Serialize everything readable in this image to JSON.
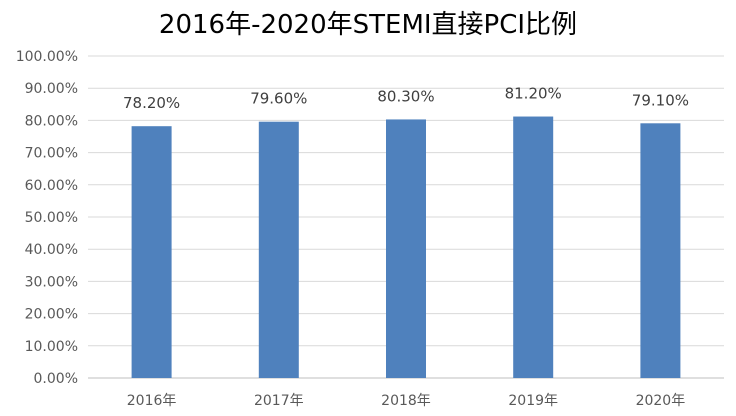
{
  "chart_data": {
    "type": "bar",
    "title": "2016年-2020年STEMI直接PCI比例",
    "categories": [
      "2016年",
      "2017年",
      "2018年",
      "2019年",
      "2020年"
    ],
    "series": [
      {
        "values": [
          78.2,
          79.6,
          80.3,
          81.2,
          79.1
        ]
      }
    ],
    "data_labels": [
      "78.20%",
      "79.60%",
      "80.30%",
      "81.20%",
      "79.10%"
    ],
    "y_ticks": [
      "0.00%",
      "10.00%",
      "20.00%",
      "30.00%",
      "40.00%",
      "50.00%",
      "60.00%",
      "70.00%",
      "80.00%",
      "90.00%",
      "100.00%"
    ],
    "ylim": [
      0,
      100
    ],
    "grid": true,
    "legend": "none",
    "bar_color": "#4f81bd",
    "grid_color": "#d9d9d9",
    "axis_color": "#bfbfbf"
  }
}
